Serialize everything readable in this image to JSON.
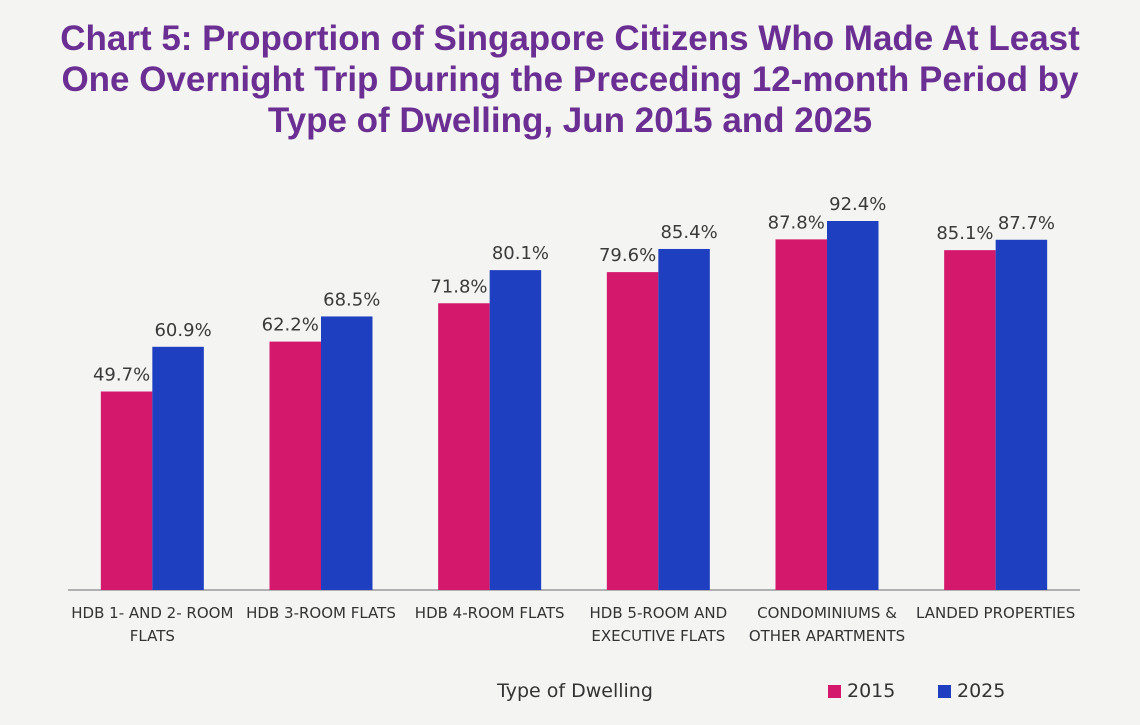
{
  "chart_data": {
    "type": "bar",
    "title": "Chart 5: Proportion of Singapore Citizens Who Made At Least One Overnight Trip During the Preceding 12-month Period by Type of Dwelling, Jun 2015 and 2025",
    "x_label": "Type of Dwelling",
    "categories": [
      "HDB 1- AND 2- ROOM FLATS",
      "HDB 3-ROOM FLATS",
      "HDB 4-ROOM FLATS",
      "HDB 5-ROOM AND EXECUTIVE FLATS",
      "CONDOMINIUMS & OTHER APARTMENTS",
      "LANDED PROPERTIES"
    ],
    "series": [
      {
        "name": "2015",
        "color": "#d4186c",
        "values": [
          49.7,
          62.2,
          71.8,
          79.6,
          87.8,
          85.1
        ],
        "value_labels": [
          "49.7%",
          "62.2%",
          "71.8%",
          "79.6%",
          "87.8%",
          "85.1%"
        ]
      },
      {
        "name": "2025",
        "color": "#1e3fc0",
        "values": [
          60.9,
          68.5,
          80.1,
          85.4,
          92.4,
          87.7
        ],
        "value_labels": [
          "60.9%",
          "68.5%",
          "80.1%",
          "85.4%",
          "92.4%",
          "87.7%"
        ]
      }
    ],
    "legend": "bottom-right"
  }
}
